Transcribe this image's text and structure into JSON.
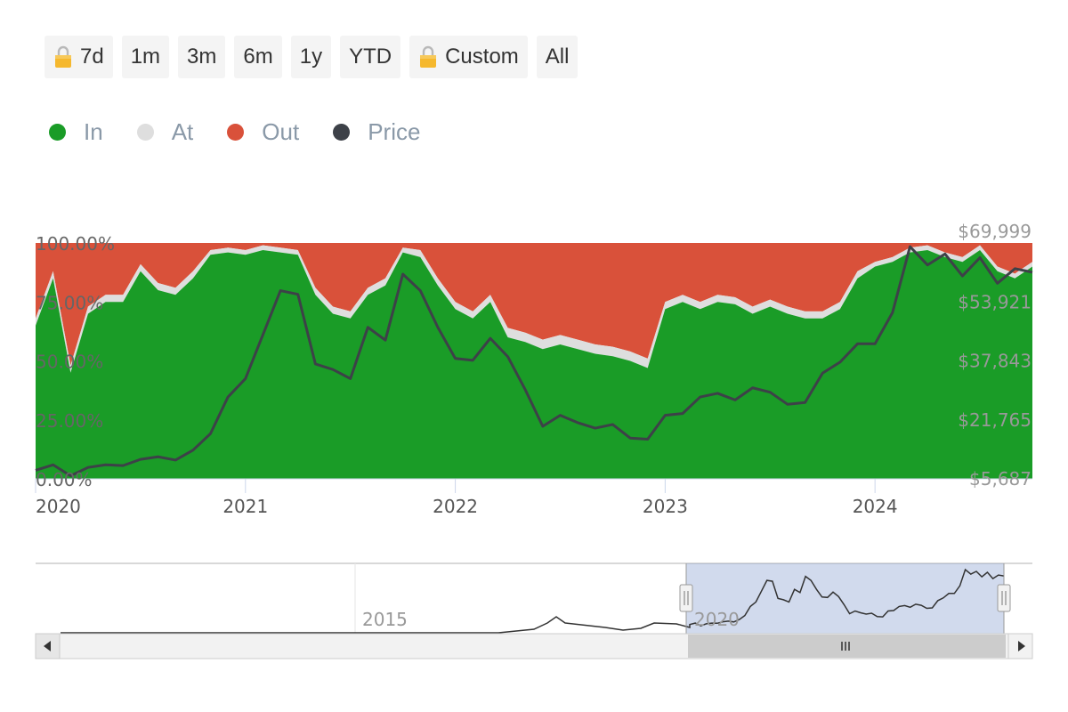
{
  "range_selector": {
    "buttons": [
      {
        "label": "7d",
        "locked": true
      },
      {
        "label": "1m",
        "locked": false
      },
      {
        "label": "3m",
        "locked": false
      },
      {
        "label": "6m",
        "locked": false
      },
      {
        "label": "1y",
        "locked": false
      },
      {
        "label": "YTD",
        "locked": false
      },
      {
        "label": "Custom",
        "locked": true
      },
      {
        "label": "All",
        "locked": false
      }
    ]
  },
  "legend": [
    {
      "label": "In",
      "color": "#1a9c27"
    },
    {
      "label": "At",
      "color": "#dedede"
    },
    {
      "label": "Out",
      "color": "#d9513a"
    },
    {
      "label": "Price",
      "color": "#3d4148"
    }
  ],
  "chart_data": {
    "type": "area",
    "stacking": "percent",
    "grid": false,
    "legend_position": "top-left",
    "x_axis": {
      "ticks": [
        "2020",
        "2021",
        "2022",
        "2023",
        "2024"
      ]
    },
    "y_axis_left": {
      "ticks": [
        "0.00%",
        "25.00%",
        "50.00%",
        "75.00%",
        "100.00%"
      ],
      "range": [
        0,
        100
      ]
    },
    "y_axis_right": {
      "ticks": [
        "$5,687",
        "$21,765",
        "$37,843",
        "$53,921",
        "$69,999"
      ],
      "range": [
        5687,
        69999
      ]
    },
    "x": [
      "2020-01",
      "2020-02",
      "2020-03",
      "2020-04",
      "2020-05",
      "2020-06",
      "2020-07",
      "2020-08",
      "2020-09",
      "2020-10",
      "2020-11",
      "2020-12",
      "2021-01",
      "2021-02",
      "2021-03",
      "2021-04",
      "2021-05",
      "2021-06",
      "2021-07",
      "2021-08",
      "2021-09",
      "2021-10",
      "2021-11",
      "2021-12",
      "2022-01",
      "2022-02",
      "2022-03",
      "2022-04",
      "2022-05",
      "2022-06",
      "2022-07",
      "2022-08",
      "2022-09",
      "2022-10",
      "2022-11",
      "2022-12",
      "2023-01",
      "2023-02",
      "2023-03",
      "2023-04",
      "2023-05",
      "2023-06",
      "2023-07",
      "2023-08",
      "2023-09",
      "2023-10",
      "2023-11",
      "2023-12",
      "2024-01",
      "2024-02",
      "2024-03",
      "2024-04",
      "2024-05",
      "2024-06",
      "2024-07",
      "2024-08",
      "2024-09",
      "2024-10"
    ],
    "series": [
      {
        "name": "In",
        "color": "#1a9c27",
        "values": [
          65,
          85,
          45,
          70,
          75,
          75,
          88,
          80,
          78,
          85,
          95,
          96,
          95,
          97,
          96,
          95,
          78,
          70,
          68,
          78,
          82,
          96,
          94,
          82,
          72,
          68,
          75,
          60,
          58,
          55,
          57,
          55,
          53,
          52,
          50,
          47,
          72,
          75,
          72,
          75,
          74,
          70,
          73,
          70,
          68,
          68,
          72,
          85,
          90,
          92,
          96,
          97,
          94,
          92,
          97,
          88,
          85,
          90
        ]
      },
      {
        "name": "At",
        "color": "#dedede",
        "values": [
          3,
          3,
          3,
          3,
          3,
          3,
          3,
          3,
          3,
          3,
          2,
          2,
          2,
          2,
          2,
          2,
          3,
          3,
          3,
          3,
          3,
          2,
          3,
          3,
          3,
          3,
          3,
          4,
          4,
          4,
          4,
          4,
          4,
          4,
          4,
          4,
          3,
          3,
          3,
          3,
          3,
          3,
          3,
          3,
          3,
          3,
          3,
          3,
          2,
          2,
          2,
          2,
          2,
          2,
          2,
          2,
          2,
          2
        ]
      },
      {
        "name": "Out",
        "color": "#d9513a",
        "values": [
          32,
          12,
          52,
          27,
          22,
          22,
          9,
          17,
          19,
          12,
          3,
          2,
          3,
          1,
          2,
          3,
          19,
          27,
          29,
          19,
          15,
          2,
          3,
          15,
          25,
          29,
          22,
          36,
          38,
          41,
          39,
          41,
          43,
          44,
          46,
          49,
          25,
          22,
          25,
          22,
          23,
          27,
          24,
          27,
          29,
          29,
          25,
          12,
          8,
          6,
          2,
          1,
          4,
          6,
          1,
          10,
          13,
          8
        ]
      },
      {
        "name": "Price",
        "color": "#3d4148",
        "axis": "right",
        "values": [
          8000,
          9500,
          6500,
          8800,
          9500,
          9300,
          11000,
          11700,
          10800,
          13500,
          18000,
          28000,
          33000,
          45000,
          57000,
          56000,
          37000,
          35500,
          33000,
          47000,
          43500,
          61500,
          57000,
          47000,
          38500,
          38000,
          44000,
          39000,
          30000,
          20000,
          23000,
          21000,
          19500,
          20500,
          16800,
          16500,
          23000,
          23500,
          28000,
          29000,
          27200,
          30500,
          29300,
          26000,
          26500,
          34500,
          37500,
          42500,
          42500,
          51000,
          69000,
          64000,
          67000,
          61000,
          66000,
          59000,
          63000,
          62000
        ]
      }
    ]
  },
  "navigator": {
    "tick_labels": [
      "2015",
      "2020"
    ],
    "handle_grip": "||",
    "scrollbar_grip": "|||",
    "left_arrow": "◀",
    "right_arrow": "▶"
  }
}
